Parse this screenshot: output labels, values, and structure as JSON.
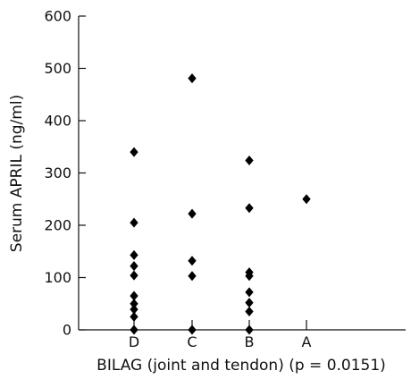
{
  "chart_data": {
    "type": "scatter",
    "title": "",
    "xlabel": "BILAG (joint and tendon) (p = 0.0151)",
    "ylabel": "Serum APRIL (ng/ml)",
    "categories": [
      "D",
      "C",
      "B",
      "A"
    ],
    "ylim": [
      0,
      600
    ],
    "yticks": [
      0,
      100,
      200,
      300,
      400,
      500,
      600
    ],
    "grid": false,
    "legend": "none",
    "marker": "diamond",
    "marker_color": "#000000",
    "series": [
      {
        "points": [
          {
            "x": "D",
            "y": 340
          },
          {
            "x": "D",
            "y": 205
          },
          {
            "x": "D",
            "y": 143
          },
          {
            "x": "D",
            "y": 122
          },
          {
            "x": "D",
            "y": 104
          },
          {
            "x": "D",
            "y": 65
          },
          {
            "x": "D",
            "y": 50
          },
          {
            "x": "D",
            "y": 39
          },
          {
            "x": "D",
            "y": 25
          },
          {
            "x": "D",
            "y": 0
          },
          {
            "x": "C",
            "y": 481
          },
          {
            "x": "C",
            "y": 222
          },
          {
            "x": "C",
            "y": 132
          },
          {
            "x": "C",
            "y": 103
          },
          {
            "x": "C",
            "y": 0
          },
          {
            "x": "B",
            "y": 324
          },
          {
            "x": "B",
            "y": 233
          },
          {
            "x": "B",
            "y": 110
          },
          {
            "x": "B",
            "y": 103
          },
          {
            "x": "B",
            "y": 72
          },
          {
            "x": "B",
            "y": 52
          },
          {
            "x": "B",
            "y": 35
          },
          {
            "x": "B",
            "y": 0
          },
          {
            "x": "A",
            "y": 250
          }
        ]
      }
    ]
  }
}
